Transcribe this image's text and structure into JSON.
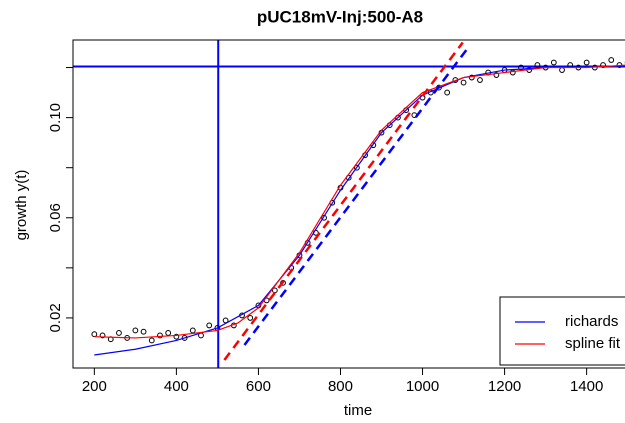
{
  "chart_data": {
    "type": "scatter",
    "title": "pUC18mV-Inj:500-A8",
    "xlabel": "time",
    "ylabel": "growth y(t)",
    "xlim": [
      148,
      1552
    ],
    "ylim": [
      0,
      0.131
    ],
    "xticks": [
      200,
      400,
      600,
      800,
      1000,
      1200,
      1400
    ],
    "yticks": [
      0.02,
      0.06,
      {
        "value": 0.1,
        "label": "0.10"
      }
    ],
    "yminorticks": [
      0.04,
      0.08,
      0.12
    ],
    "points": {
      "color": "#000000",
      "x": [
        200,
        220,
        240,
        260,
        280,
        300,
        320,
        340,
        360,
        380,
        400,
        420,
        440,
        460,
        480,
        500,
        520,
        540,
        560,
        580,
        600,
        620,
        640,
        660,
        680,
        700,
        720,
        740,
        760,
        780,
        800,
        820,
        840,
        860,
        880,
        900,
        920,
        940,
        960,
        980,
        1000,
        1020,
        1040,
        1060,
        1080,
        1100,
        1120,
        1140,
        1160,
        1180,
        1200,
        1220,
        1240,
        1260,
        1280,
        1300,
        1320,
        1340,
        1360,
        1380,
        1400,
        1420,
        1440,
        1460,
        1480,
        1500
      ],
      "values": [
        0.0135,
        0.013,
        0.0115,
        0.014,
        0.012,
        0.015,
        0.0145,
        0.011,
        0.013,
        0.014,
        0.0125,
        0.012,
        0.015,
        0.013,
        0.017,
        0.016,
        0.019,
        0.017,
        0.021,
        0.02,
        0.025,
        0.027,
        0.031,
        0.034,
        0.04,
        0.045,
        0.05,
        0.054,
        0.06,
        0.066,
        0.072,
        0.076,
        0.08,
        0.085,
        0.089,
        0.094,
        0.097,
        0.1,
        0.103,
        0.101,
        0.108,
        0.11,
        0.112,
        0.11,
        0.115,
        0.114,
        0.116,
        0.115,
        0.118,
        0.117,
        0.119,
        0.118,
        0.12,
        0.119,
        0.121,
        0.12,
        0.122,
        0.119,
        0.121,
        0.12,
        0.122,
        0.12,
        0.121,
        0.123,
        0.121,
        0.122
      ]
    },
    "series": [
      {
        "name": "richards",
        "color": "#0000ff",
        "x": [
          200,
          300,
          400,
          500,
          600,
          700,
          800,
          900,
          1000,
          1100,
          1200,
          1300,
          1400,
          1500
        ],
        "values": [
          0.0052,
          0.0075,
          0.011,
          0.016,
          0.025,
          0.045,
          0.071,
          0.094,
          0.109,
          0.116,
          0.119,
          0.12,
          0.1203,
          0.1204
        ]
      },
      {
        "name": "spline fit",
        "color": "#ff0000",
        "x": [
          200,
          300,
          400,
          500,
          550,
          600,
          700,
          800,
          900,
          1000,
          1100,
          1200,
          1300,
          1400,
          1500
        ],
        "values": [
          0.0125,
          0.012,
          0.013,
          0.015,
          0.018,
          0.024,
          0.046,
          0.073,
          0.095,
          0.11,
          0.116,
          0.118,
          0.12,
          0.12,
          0.121
        ]
      }
    ],
    "tangents": [
      {
        "color": "#ff0000",
        "x": [
          517,
          1098
        ],
        "values": [
          0.0032,
          0.13
        ]
      },
      {
        "color": "#0000ff",
        "x": [
          566,
          1115
        ],
        "values": [
          0.0092,
          0.1288
        ]
      }
    ],
    "hline": 0.1204,
    "vline": 502,
    "legend": "bottom-right"
  }
}
